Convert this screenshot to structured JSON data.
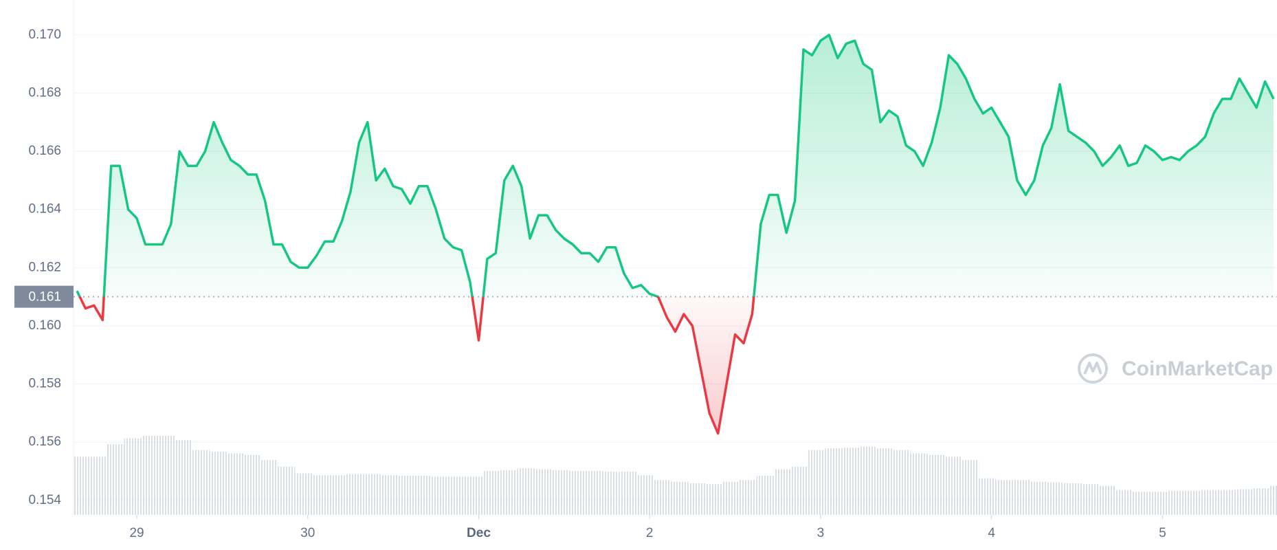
{
  "chart_data": {
    "type": "line",
    "x": [
      28.65,
      28.7,
      28.75,
      28.8,
      28.85,
      28.9,
      28.95,
      29,
      29.05,
      29.1,
      29.15,
      29.2,
      29.25,
      29.3,
      29.35,
      29.4,
      29.45,
      29.5,
      29.55,
      29.6,
      29.65,
      29.7,
      29.75,
      29.8,
      29.85,
      29.9,
      29.95,
      30,
      30.05,
      30.1,
      30.15,
      30.2,
      30.25,
      30.3,
      30.35,
      30.4,
      30.45,
      30.5,
      30.55,
      30.6,
      30.65,
      30.7,
      30.75,
      30.8,
      30.85,
      30.9,
      30.95,
      31,
      31.05,
      31.1,
      31.15,
      31.2,
      31.25,
      31.3,
      31.35,
      31.4,
      31.45,
      31.5,
      31.55,
      31.6,
      31.65,
      31.7,
      31.75,
      31.8,
      31.85,
      31.9,
      31.95,
      32,
      32.05,
      32.1,
      32.15,
      32.2,
      32.25,
      32.3,
      32.35,
      32.4,
      32.45,
      32.5,
      32.55,
      32.6,
      32.65,
      32.7,
      32.75,
      32.8,
      32.85,
      32.9,
      32.95,
      33,
      33.05,
      33.1,
      33.15,
      33.2,
      33.25,
      33.3,
      33.35,
      33.4,
      33.45,
      33.5,
      33.55,
      33.6,
      33.65,
      33.7,
      33.75,
      33.8,
      33.85,
      33.9,
      33.95,
      34,
      34.05,
      34.1,
      34.15,
      34.2,
      34.25,
      34.3,
      34.35,
      34.4,
      34.45,
      34.5,
      34.55,
      34.6,
      34.65,
      34.7,
      34.75,
      34.8,
      34.85,
      34.9,
      34.95,
      35,
      35.05,
      35.1,
      35.15,
      35.2,
      35.25,
      35.3,
      35.35,
      35.4,
      35.45,
      35.5,
      35.55,
      35.6,
      35.65
    ],
    "values": [
      0.1612,
      0.1606,
      0.1607,
      0.1602,
      0.1655,
      0.1655,
      0.164,
      0.1637,
      0.1628,
      0.1628,
      0.1628,
      0.1635,
      0.166,
      0.1655,
      0.1655,
      0.166,
      0.167,
      0.1663,
      0.1657,
      0.1655,
      0.1652,
      0.1652,
      0.1643,
      0.1628,
      0.1628,
      0.1622,
      0.162,
      0.162,
      0.1624,
      0.1629,
      0.1629,
      0.1636,
      0.1646,
      0.1663,
      0.167,
      0.165,
      0.1654,
      0.1648,
      0.1647,
      0.1642,
      0.1648,
      0.1648,
      0.164,
      0.163,
      0.1627,
      0.1626,
      0.1615,
      0.1595,
      0.1623,
      0.1625,
      0.165,
      0.1655,
      0.1648,
      0.163,
      0.1638,
      0.1638,
      0.1633,
      0.163,
      0.1628,
      0.1625,
      0.1625,
      0.1622,
      0.1627,
      0.1627,
      0.1618,
      0.1613,
      0.1614,
      0.1611,
      0.161,
      0.1603,
      0.1598,
      0.1604,
      0.16,
      0.1585,
      0.157,
      0.1563,
      0.158,
      0.1597,
      0.1594,
      0.1604,
      0.1635,
      0.1645,
      0.1645,
      0.1632,
      0.1643,
      0.1695,
      0.1693,
      0.1698,
      0.17,
      0.1692,
      0.1697,
      0.1698,
      0.169,
      0.1688,
      0.167,
      0.1674,
      0.1672,
      0.1662,
      0.166,
      0.1655,
      0.1663,
      0.1675,
      0.1693,
      0.169,
      0.1685,
      0.1678,
      0.1673,
      0.1675,
      0.167,
      0.1665,
      0.165,
      0.1645,
      0.165,
      0.1662,
      0.1668,
      0.1683,
      0.1667,
      0.1665,
      0.1663,
      0.166,
      0.1655,
      0.1658,
      0.1662,
      0.1655,
      0.1656,
      0.1662,
      0.166,
      0.1657,
      0.1658,
      0.1657,
      0.166,
      0.1662,
      0.1665,
      0.1673,
      0.1678,
      0.1678,
      0.1685,
      0.168,
      0.1675,
      0.1684,
      0.1678
    ],
    "color": "#16c784",
    "down_color": "#ea3943",
    "baseline": 0.161,
    "volume": {
      "color": "#dfe3ea",
      "x": [
        28.65,
        28.75,
        28.85,
        28.95,
        29.05,
        29.15,
        29.25,
        29.35,
        29.45,
        29.55,
        29.65,
        29.75,
        29.85,
        29.95,
        30.05,
        30.15,
        30.25,
        30.35,
        30.45,
        30.55,
        30.65,
        30.75,
        30.85,
        30.95,
        31.05,
        31.15,
        31.25,
        31.35,
        31.45,
        31.55,
        31.65,
        31.75,
        31.85,
        31.95,
        32.05,
        32.15,
        32.25,
        32.35,
        32.45,
        32.55,
        32.65,
        32.75,
        32.85,
        32.95,
        33.05,
        33.15,
        33.25,
        33.35,
        33.45,
        33.55,
        33.65,
        33.75,
        33.85,
        33.95,
        34.05,
        34.15,
        34.25,
        34.35,
        34.45,
        34.55,
        34.65,
        34.75,
        34.85,
        34.95,
        35.05,
        35.15,
        35.25,
        35.35,
        35.45,
        35.55,
        35.65
      ],
      "values": [
        70,
        70,
        85,
        92,
        95,
        95,
        90,
        78,
        76,
        74,
        72,
        66,
        58,
        50,
        48,
        48,
        49,
        49,
        48,
        47,
        47,
        46,
        46,
        46,
        53,
        54,
        56,
        55,
        54,
        53,
        53,
        52,
        52,
        48,
        42,
        40,
        38,
        37,
        40,
        42,
        47,
        55,
        58,
        78,
        80,
        81,
        82,
        80,
        78,
        74,
        72,
        70,
        66,
        44,
        42,
        42,
        40,
        39,
        38,
        37,
        35,
        30,
        28,
        28,
        29,
        29,
        30,
        30,
        31,
        32,
        35
      ]
    },
    "xlim": [
      28.63,
      35.67
    ],
    "xticks": [
      29,
      30,
      {
        "value": 31,
        "label": "Dec"
      },
      {
        "value": 32,
        "label": "2"
      },
      {
        "value": 33,
        "label": "3"
      },
      {
        "value": 34,
        "label": "4"
      },
      {
        "value": 35,
        "label": "5"
      }
    ],
    "ylim": [
      0.1535,
      0.1712
    ],
    "yticks": [
      0.154,
      0.156,
      0.158,
      {
        "value": 0.16,
        "label": "0.160"
      },
      0.162,
      0.164,
      0.166,
      0.168,
      {
        "value": 0.17,
        "label": "0.170"
      }
    ],
    "grid": true,
    "watermark": "CoinMarketCap"
  }
}
